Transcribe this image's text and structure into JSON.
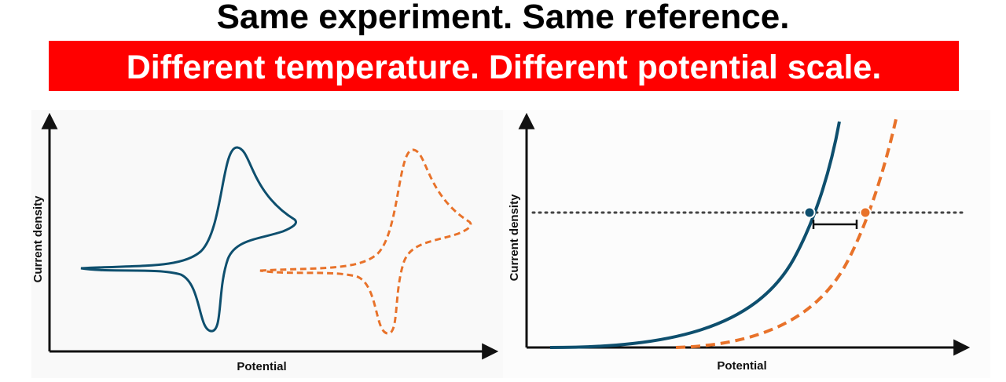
{
  "header": {
    "title": "Same experiment. Same reference.",
    "subtitle": "Different temperature. Different potential scale."
  },
  "panels": [
    {
      "y_label": "Current density",
      "x_label": "Potential"
    },
    {
      "y_label": "Current density",
      "x_label": "Potential"
    }
  ]
}
